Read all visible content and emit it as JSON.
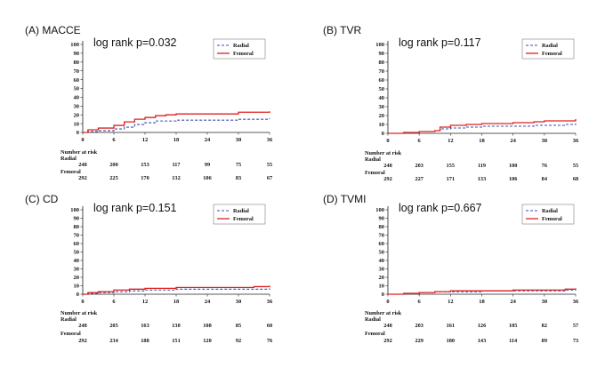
{
  "figure": {
    "time_ticks": [
      0,
      6,
      12,
      18,
      24,
      30,
      36
    ],
    "y_ticks": [
      0,
      10,
      20,
      30,
      40,
      50,
      60,
      70,
      80,
      90,
      100
    ],
    "risk_heading": "Number at risk",
    "series_names": [
      "Radial",
      "Femoral"
    ],
    "colors": {
      "radial": "#3b4fa8",
      "femoral": "#e02020"
    }
  },
  "chart_data": [
    {
      "type": "line",
      "title": "(A) MACCE",
      "annotation": "log rank p=0.032",
      "xlim": [
        0,
        36
      ],
      "ylim": [
        0,
        100
      ],
      "x": [
        0,
        1,
        3,
        6,
        8,
        10,
        12,
        14,
        16,
        18,
        24,
        30,
        36
      ],
      "series": [
        {
          "name": "Radial",
          "values": [
            0,
            1,
            2,
            4,
            6,
            9,
            11,
            13,
            13,
            14,
            14,
            15,
            16
          ]
        },
        {
          "name": "Femoral",
          "values": [
            0,
            3,
            5,
            8,
            12,
            15,
            17,
            19,
            20,
            21,
            21,
            23,
            24
          ]
        }
      ],
      "risk": {
        "Radial": [
          248,
          200,
          153,
          117,
          99,
          75,
          55
        ],
        "Femoral": [
          292,
          225,
          170,
          132,
          106,
          83,
          67
        ]
      }
    },
    {
      "type": "line",
      "title": "(B) TVR",
      "annotation": "log rank p=0.117",
      "xlim": [
        0,
        36
      ],
      "ylim": [
        0,
        100
      ],
      "x": [
        0,
        3,
        6,
        9,
        10,
        12,
        15,
        18,
        24,
        28,
        30,
        34,
        36
      ],
      "series": [
        {
          "name": "Radial",
          "values": [
            0,
            1,
            2,
            3,
            5,
            6,
            7,
            8,
            8,
            9,
            9,
            10,
            11
          ]
        },
        {
          "name": "Femoral",
          "values": [
            0,
            1,
            2,
            3,
            7,
            9,
            10,
            11,
            12,
            13,
            14,
            14,
            16
          ]
        }
      ],
      "risk": {
        "Radial": [
          248,
          203,
          155,
          119,
          100,
          76,
          55
        ],
        "Femoral": [
          292,
          227,
          171,
          133,
          106,
          84,
          68
        ]
      }
    },
    {
      "type": "line",
      "title": "(C) CD",
      "annotation": "log rank p=0.151",
      "xlim": [
        0,
        36
      ],
      "ylim": [
        0,
        100
      ],
      "x": [
        0,
        1,
        3,
        6,
        9,
        12,
        18,
        24,
        30,
        33,
        36
      ],
      "series": [
        {
          "name": "Radial",
          "values": [
            0,
            1,
            2,
            3,
            4,
            5,
            6,
            6,
            6,
            6,
            7
          ]
        },
        {
          "name": "Femoral",
          "values": [
            0,
            2,
            3,
            5,
            6,
            7,
            8,
            8,
            8,
            9,
            10
          ]
        }
      ],
      "risk": {
        "Radial": [
          248,
          205,
          163,
          130,
          108,
          85,
          60
        ],
        "Femoral": [
          292,
          234,
          188,
          151,
          120,
          92,
          76
        ]
      }
    },
    {
      "type": "line",
      "title": "(D) TVMI",
      "annotation": "log rank p=0.667",
      "xlim": [
        0,
        36
      ],
      "ylim": [
        0,
        100
      ],
      "x": [
        0,
        3,
        6,
        9,
        12,
        18,
        24,
        30,
        34,
        36
      ],
      "series": [
        {
          "name": "Radial",
          "values": [
            0,
            1,
            2,
            3,
            3,
            4,
            4,
            4,
            5,
            6
          ]
        },
        {
          "name": "Femoral",
          "values": [
            0,
            1,
            2,
            3,
            4,
            4,
            5,
            5,
            6,
            7
          ]
        }
      ],
      "risk": {
        "Radial": [
          248,
          203,
          161,
          126,
          105,
          82,
          57
        ],
        "Femoral": [
          292,
          229,
          180,
          143,
          114,
          89,
          73
        ]
      }
    }
  ]
}
